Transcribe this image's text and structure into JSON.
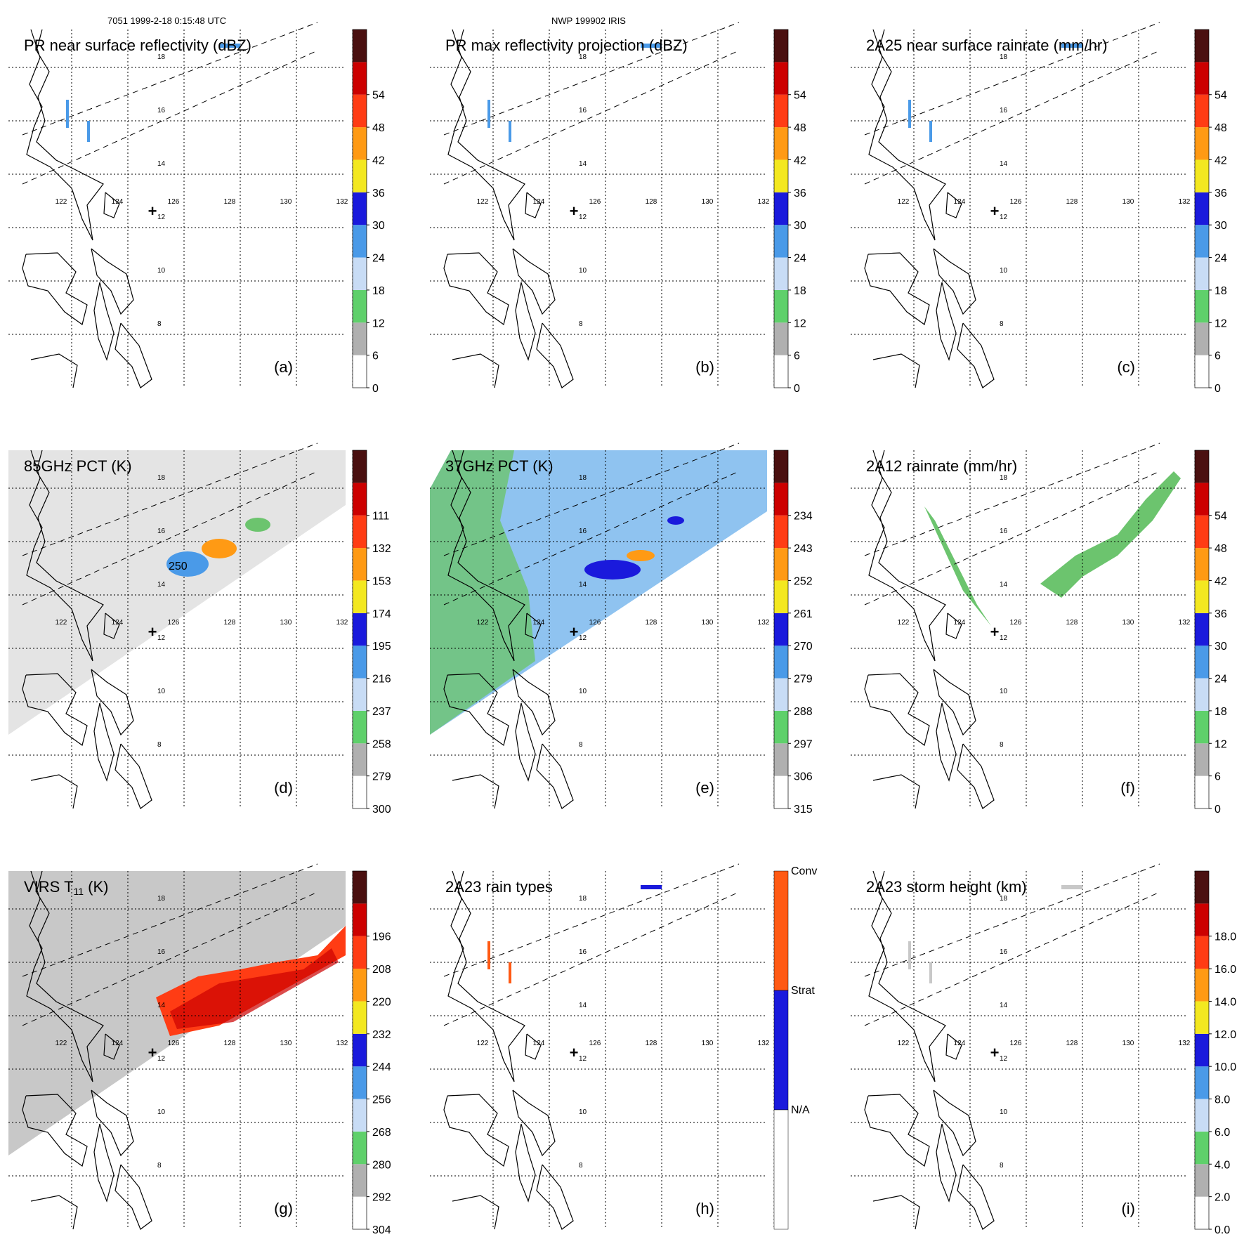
{
  "header": {
    "orbit_info": "7051 1999-2-18 0:15:48 UTC",
    "case_id": "NWP 199902 IRIS"
  },
  "map": {
    "lon_labels": [
      "122",
      "124",
      "126",
      "128",
      "130",
      "132"
    ],
    "lat_labels": [
      "18",
      "16",
      "14",
      "12",
      "10",
      "8"
    ],
    "center_marker": "+"
  },
  "panels": [
    {
      "id": "a",
      "title": "PR near surface reflectivity (dBZ)",
      "letter": "(a)",
      "colorbar": {
        "ticks": [
          "0",
          "6",
          "12",
          "18",
          "24",
          "30",
          "36",
          "42",
          "48",
          "54"
        ],
        "bands": 11
      }
    },
    {
      "id": "b",
      "title": "PR max reflectivity projection (dBZ)",
      "letter": "(b)",
      "colorbar": {
        "ticks": [
          "0",
          "6",
          "12",
          "18",
          "24",
          "30",
          "36",
          "42",
          "48",
          "54"
        ],
        "bands": 11
      }
    },
    {
      "id": "c",
      "title": "2A25 near surface rainrate (mm/hr)",
      "letter": "(c)",
      "colorbar": {
        "ticks": [
          "0",
          "6",
          "12",
          "18",
          "24",
          "30",
          "36",
          "42",
          "48",
          "54"
        ],
        "bands": 11
      }
    },
    {
      "id": "d",
      "title": "85GHz PCT (K)",
      "letter": "(d)",
      "annotation": "250",
      "colorbar": {
        "ticks": [
          "300",
          "279",
          "258",
          "237",
          "216",
          "195",
          "174",
          "153",
          "132",
          "111"
        ],
        "bands": 11
      }
    },
    {
      "id": "e",
      "title": "37GHz PCT (K)",
      "letter": "(e)",
      "colorbar": {
        "ticks": [
          "315",
          "306",
          "297",
          "288",
          "279",
          "270",
          "261",
          "252",
          "243",
          "234"
        ],
        "bands": 11
      }
    },
    {
      "id": "f",
      "title": "2A12 rainrate (mm/hr)",
      "letter": "(f)",
      "colorbar": {
        "ticks": [
          "0",
          "6",
          "12",
          "18",
          "24",
          "30",
          "36",
          "42",
          "48",
          "54"
        ],
        "bands": 11
      }
    },
    {
      "id": "g",
      "title": "VIRS T11 (K)",
      "title_main": "VIRS T",
      "title_sub": "11",
      "title_unit": " (K)",
      "letter": "(g)",
      "colorbar": {
        "ticks": [
          "304",
          "292",
          "280",
          "268",
          "256",
          "244",
          "232",
          "220",
          "208",
          "196"
        ],
        "bands": 11
      }
    },
    {
      "id": "h",
      "title": "2A23 rain types",
      "letter": "(h)",
      "colorbar": {
        "ticks": [
          "N/A",
          "Strat",
          "Conv"
        ],
        "categorical": true
      }
    },
    {
      "id": "i",
      "title": "2A23 storm height (km)",
      "letter": "(i)",
      "colorbar": {
        "ticks": [
          "0.0",
          "2.0",
          "4.0",
          "6.0",
          "8.0",
          "10.0",
          "12.0",
          "14.0",
          "16.0",
          "18.0"
        ],
        "bands": 11
      }
    }
  ],
  "colors": {
    "scale": [
      "#ffffff",
      "#b0b0b0",
      "#5fd06b",
      "#c8dcf5",
      "#4a9ae8",
      "#1a1adc",
      "#f3e820",
      "#ff9a14",
      "#ff3c14",
      "#cc0000",
      "#4a1010"
    ],
    "category_conv": "#ff5a14",
    "category_strat": "#1a1adc",
    "category_na": "#ffffff"
  }
}
